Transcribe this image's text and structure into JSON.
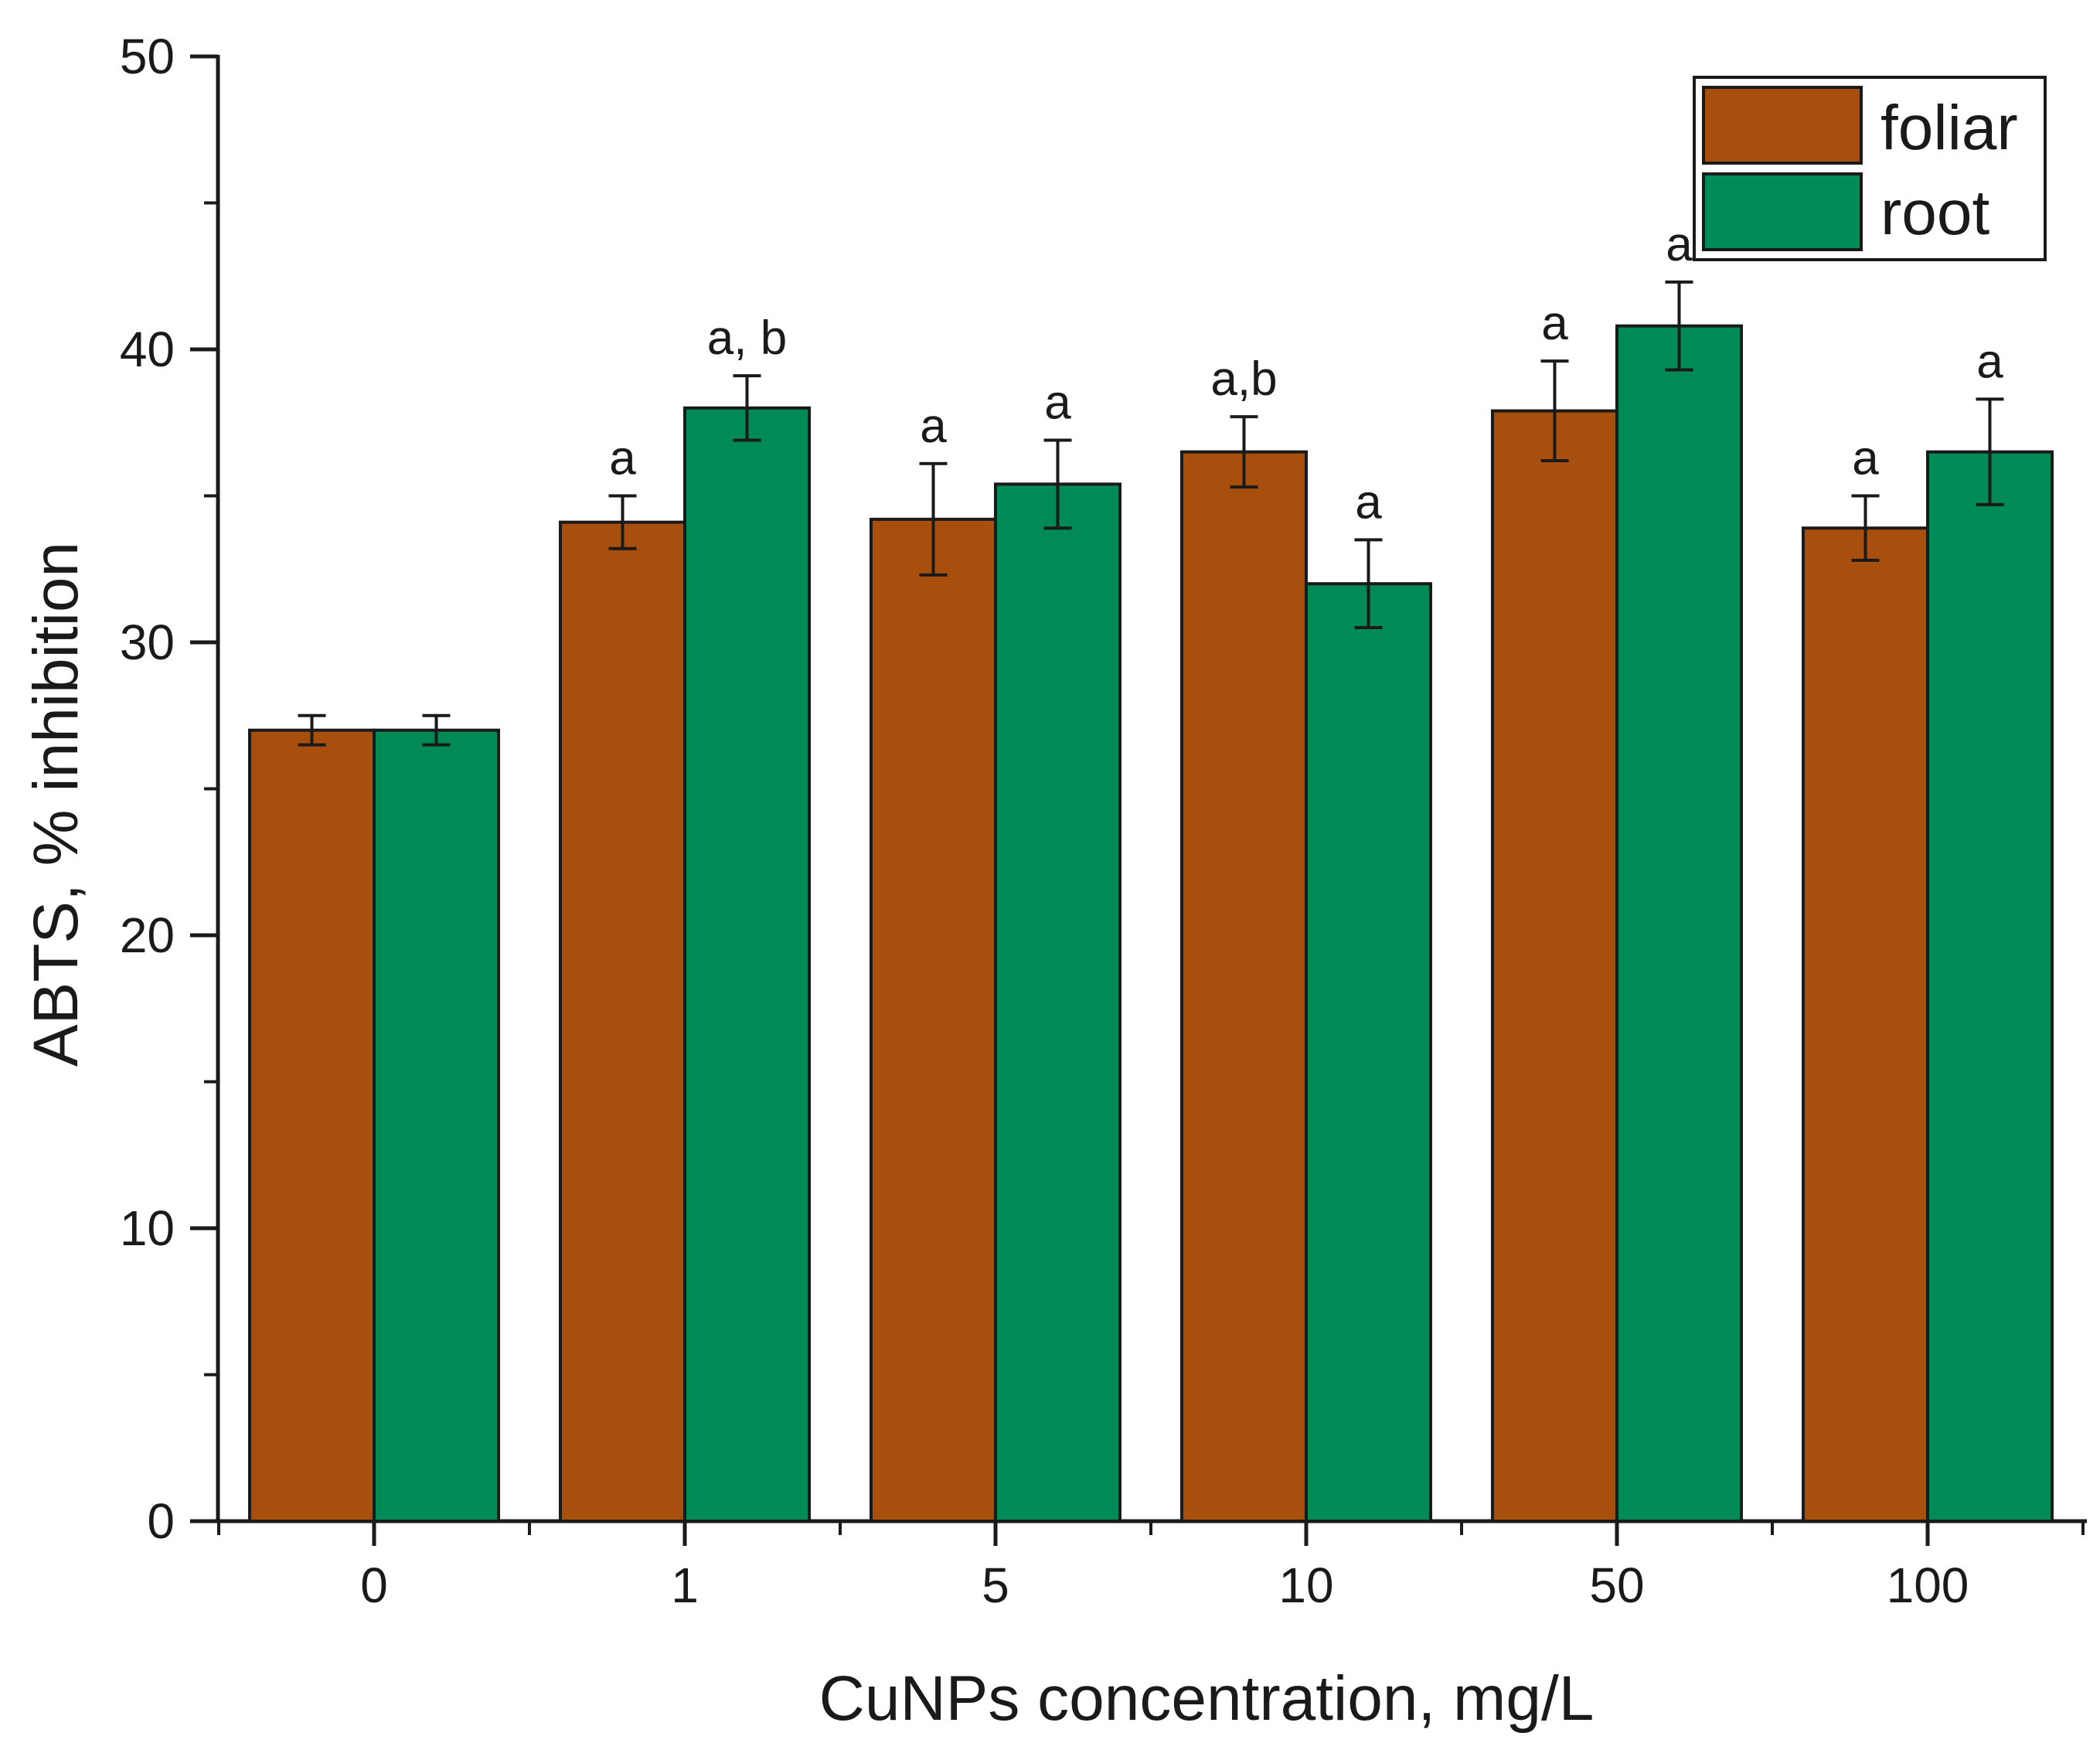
{
  "chart_data": {
    "type": "bar",
    "title": "",
    "xlabel": "CuNPs concentration, mg/L",
    "ylabel": "ABTS, % inhibition",
    "ylim": [
      0,
      50
    ],
    "yticks": [
      0,
      10,
      20,
      30,
      40,
      50
    ],
    "categories": [
      "0",
      "1",
      "5",
      "10",
      "50",
      "100"
    ],
    "legend_position": "top-right",
    "series": [
      {
        "name": "foliar",
        "color": "#A84F0E",
        "values": [
          27.0,
          34.1,
          34.2,
          36.5,
          37.9,
          33.9
        ],
        "errors": [
          0.5,
          0.9,
          1.9,
          1.2,
          1.7,
          1.1
        ],
        "labels": [
          "",
          "a",
          "a",
          "a,b",
          "a",
          "a"
        ]
      },
      {
        "name": "root",
        "color": "#008A56",
        "values": [
          27.0,
          38.0,
          35.4,
          32.0,
          40.8,
          36.5
        ],
        "errors": [
          0.5,
          1.1,
          1.5,
          1.5,
          1.5,
          1.8
        ],
        "labels": [
          "",
          "a, b",
          "a",
          "a",
          "a",
          "a"
        ]
      }
    ]
  }
}
